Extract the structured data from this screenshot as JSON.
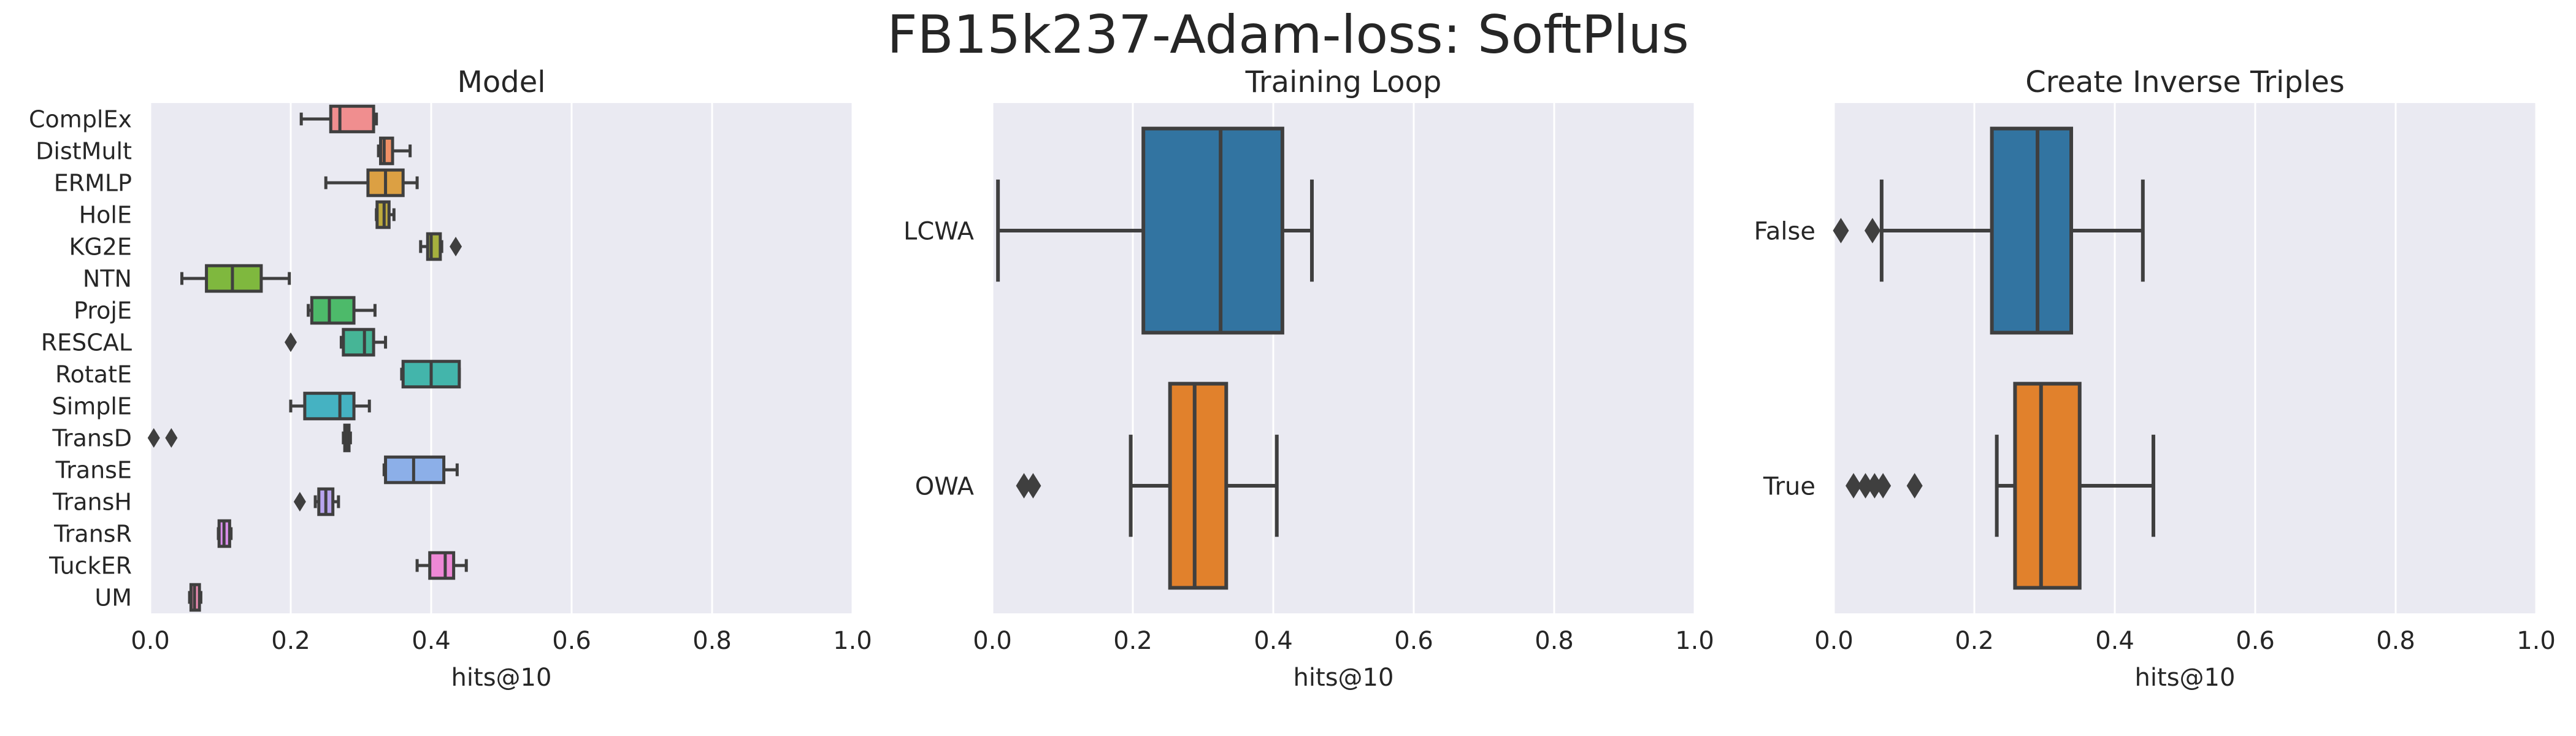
{
  "suptitle": "FB15k237-Adam-loss: SoftPlus",
  "colors": {
    "panel_bg": "#EAEAF2",
    "grid": "#FFFFFF",
    "box_edge": "#3F3F3F"
  },
  "chart_data": [
    {
      "type": "boxplot",
      "orientation": "horizontal",
      "title": "Model",
      "xlabel": "hits@10",
      "ylabel": "",
      "xlim": [
        0.0,
        1.0
      ],
      "xticks": [
        0.0,
        0.2,
        0.4,
        0.6,
        0.8,
        1.0
      ],
      "xtick_labels": [
        "0.0",
        "0.2",
        "0.4",
        "0.6",
        "0.8",
        "1.0"
      ],
      "grid": true,
      "categories": [
        "ComplEx",
        "DistMult",
        "ERMLP",
        "HolE",
        "KG2E",
        "NTN",
        "ProjE",
        "RESCAL",
        "RotatE",
        "SimplE",
        "TransD",
        "TransE",
        "TransH",
        "TransR",
        "TuckER",
        "UM"
      ],
      "colors": [
        "#F08E8F",
        "#F19066",
        "#DCA043",
        "#BDAA3D",
        "#A6B03E",
        "#7FB83E",
        "#4DBA6A",
        "#46B596",
        "#43B5AB",
        "#45B2C2",
        "#4AADD3",
        "#8CAFE8",
        "#B8A4EE",
        "#DA8FEC",
        "#EE88D6",
        "#F08DB5"
      ],
      "boxes": [
        {
          "q1": 0.257,
          "median": 0.27,
          "q3": 0.318,
          "whislo": 0.215,
          "whishi": 0.322,
          "fliers": []
        },
        {
          "q1": 0.328,
          "median": 0.333,
          "q3": 0.345,
          "whislo": 0.325,
          "whishi": 0.37,
          "fliers": []
        },
        {
          "q1": 0.31,
          "median": 0.335,
          "q3": 0.36,
          "whislo": 0.25,
          "whishi": 0.38,
          "fliers": []
        },
        {
          "q1": 0.323,
          "median": 0.333,
          "q3": 0.34,
          "whislo": 0.322,
          "whishi": 0.347,
          "fliers": []
        },
        {
          "q1": 0.395,
          "median": 0.4,
          "q3": 0.413,
          "whislo": 0.385,
          "whishi": 0.415,
          "fliers": [
            0.435
          ]
        },
        {
          "q1": 0.08,
          "median": 0.117,
          "q3": 0.158,
          "whislo": 0.045,
          "whishi": 0.198,
          "fliers": []
        },
        {
          "q1": 0.23,
          "median": 0.255,
          "q3": 0.29,
          "whislo": 0.225,
          "whishi": 0.32,
          "fliers": []
        },
        {
          "q1": 0.275,
          "median": 0.305,
          "q3": 0.318,
          "whislo": 0.272,
          "whishi": 0.335,
          "fliers": [
            0.2
          ]
        },
        {
          "q1": 0.36,
          "median": 0.4,
          "q3": 0.44,
          "whislo": 0.358,
          "whishi": 0.44,
          "fliers": []
        },
        {
          "q1": 0.22,
          "median": 0.27,
          "q3": 0.29,
          "whislo": 0.2,
          "whishi": 0.312,
          "fliers": []
        },
        {
          "q1": 0.277,
          "median": 0.28,
          "q3": 0.283,
          "whislo": 0.275,
          "whishi": 0.285,
          "fliers": [
            0.005,
            0.03
          ]
        },
        {
          "q1": 0.335,
          "median": 0.375,
          "q3": 0.418,
          "whislo": 0.333,
          "whishi": 0.437,
          "fliers": []
        },
        {
          "q1": 0.24,
          "median": 0.25,
          "q3": 0.26,
          "whislo": 0.235,
          "whishi": 0.268,
          "fliers": [
            0.213
          ]
        },
        {
          "q1": 0.098,
          "median": 0.105,
          "q3": 0.113,
          "whislo": 0.097,
          "whishi": 0.115,
          "fliers": []
        },
        {
          "q1": 0.398,
          "median": 0.42,
          "q3": 0.432,
          "whislo": 0.38,
          "whishi": 0.45,
          "fliers": []
        },
        {
          "q1": 0.058,
          "median": 0.063,
          "q3": 0.07,
          "whislo": 0.056,
          "whishi": 0.072,
          "fliers": []
        }
      ]
    },
    {
      "type": "boxplot",
      "orientation": "horizontal",
      "title": "Training Loop",
      "xlabel": "hits@10",
      "ylabel": "",
      "xlim": [
        0.0,
        1.0
      ],
      "xticks": [
        0.0,
        0.2,
        0.4,
        0.6,
        0.8,
        1.0
      ],
      "xtick_labels": [
        "0.0",
        "0.2",
        "0.4",
        "0.6",
        "0.8",
        "1.0"
      ],
      "grid": true,
      "categories": [
        "LCWA",
        "OWA"
      ],
      "colors": [
        "#3274A1",
        "#E1812C"
      ],
      "boxes": [
        {
          "q1": 0.215,
          "median": 0.325,
          "q3": 0.413,
          "whislo": 0.008,
          "whishi": 0.455,
          "fliers": []
        },
        {
          "q1": 0.253,
          "median": 0.288,
          "q3": 0.333,
          "whislo": 0.197,
          "whishi": 0.405,
          "fliers": [
            0.045,
            0.058
          ]
        }
      ]
    },
    {
      "type": "boxplot",
      "orientation": "horizontal",
      "title": "Create Inverse Triples",
      "xlabel": "hits@10",
      "ylabel": "",
      "xlim": [
        0.0,
        1.0
      ],
      "xticks": [
        0.0,
        0.2,
        0.4,
        0.6,
        0.8,
        1.0
      ],
      "xtick_labels": [
        "0.0",
        "0.2",
        "0.4",
        "0.6",
        "0.8",
        "1.0"
      ],
      "grid": true,
      "categories": [
        "False",
        "True"
      ],
      "colors": [
        "#3274A1",
        "#E1812C"
      ],
      "boxes": [
        {
          "q1": 0.225,
          "median": 0.29,
          "q3": 0.338,
          "whislo": 0.068,
          "whishi": 0.44,
          "fliers": [
            0.01,
            0.055
          ]
        },
        {
          "q1": 0.258,
          "median": 0.295,
          "q3": 0.35,
          "whislo": 0.232,
          "whishi": 0.455,
          "fliers": [
            0.028,
            0.045,
            0.058,
            0.07,
            0.115
          ]
        }
      ]
    }
  ]
}
